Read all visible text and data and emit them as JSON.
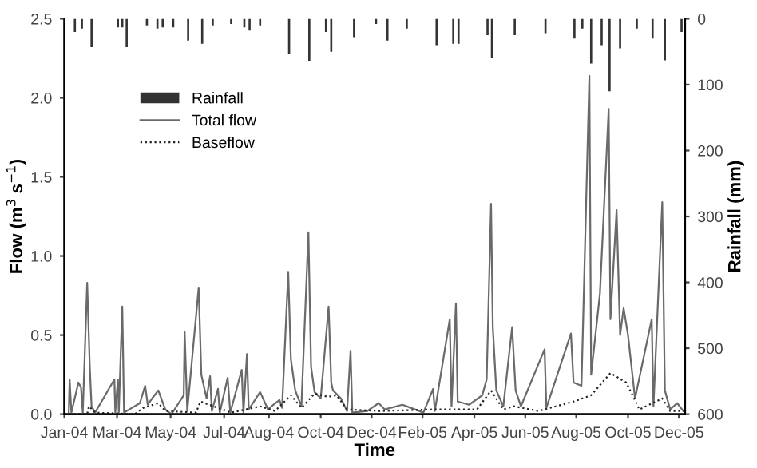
{
  "chart_data": {
    "type": "line",
    "xlabel": "Time",
    "ylabel": "Flow (m$^{3}$ s$^{−1}$)",
    "y2label": "Rainfall (mm)",
    "xlim": [
      "2004-01-01",
      "2005-12-08"
    ],
    "xticks": [
      {
        "value": "2004-01-01",
        "label": "Jan-04"
      },
      {
        "value": "2004-03-01",
        "label": "Mar-04"
      },
      {
        "value": "2004-05-01",
        "label": "May-04"
      },
      {
        "value": "2004-07-01",
        "label": "Jul-04"
      },
      {
        "value": "2004-08-21",
        "label": "Aug-04"
      },
      {
        "value": "2004-10-19",
        "label": "Oct-04"
      },
      {
        "value": "2004-12-16",
        "label": "Dec-04"
      },
      {
        "value": "2005-02-12",
        "label": "Feb-05"
      },
      {
        "value": "2005-04-12",
        "label": "Apr-05"
      },
      {
        "value": "2005-06-09",
        "label": "Jun-05"
      },
      {
        "value": "2005-08-06",
        "label": "Aug-05"
      },
      {
        "value": "2005-10-04",
        "label": "Oct-05"
      },
      {
        "value": "2005-12-01",
        "label": "Dec-05"
      }
    ],
    "ylim": [
      0,
      2.5
    ],
    "yticks": [
      {
        "value": 0,
        "label": "0.0"
      },
      {
        "value": 0.5,
        "label": "0.5"
      },
      {
        "value": 1,
        "label": "1.0"
      },
      {
        "value": 1.5,
        "label": "1.5"
      },
      {
        "value": 2,
        "label": "2.0"
      },
      {
        "value": 2.5,
        "label": "2.5"
      }
    ],
    "y2lim": [
      600,
      0
    ],
    "y2ticks": [
      0,
      100,
      200,
      300,
      400,
      500,
      600
    ],
    "grid": false,
    "legend": "top left",
    "series": [
      {
        "name": "Rainfall",
        "type": "bar",
        "axis": "y2",
        "color": "#333333",
        "x": [
          "2004-01-13",
          "2004-01-21",
          "2004-02-01",
          "2004-03-02",
          "2004-03-07",
          "2004-03-12",
          "2004-04-04",
          "2004-04-16",
          "2004-04-22",
          "2004-05-04",
          "2004-05-21",
          "2004-06-06",
          "2004-06-18",
          "2004-07-09",
          "2004-07-24",
          "2004-07-30",
          "2004-08-11",
          "2004-09-13",
          "2004-10-06",
          "2004-10-25",
          "2004-10-31",
          "2004-11-26",
          "2004-12-21",
          "2005-01-03",
          "2005-01-25",
          "2005-02-28",
          "2005-03-19",
          "2005-03-25",
          "2005-04-27",
          "2005-05-02",
          "2005-05-28",
          "2005-07-02",
          "2005-08-04",
          "2005-08-13",
          "2005-08-23",
          "2005-09-04",
          "2005-09-13",
          "2005-09-25",
          "2005-10-14",
          "2005-11-01",
          "2005-11-15",
          "2005-12-04"
        ],
        "values": [
          20,
          15,
          43,
          13,
          13,
          43,
          10,
          15,
          13,
          13,
          33,
          38,
          10,
          8,
          13,
          18,
          10,
          53,
          65,
          20,
          50,
          28,
          8,
          33,
          15,
          40,
          38,
          38,
          25,
          60,
          25,
          22,
          30,
          15,
          68,
          40,
          110,
          45,
          15,
          30,
          63,
          20
        ]
      },
      {
        "name": "Total flow",
        "line_style": "solid",
        "color": "#6a6a6a",
        "x": [
          "2004-01-01",
          "2004-01-06",
          "2004-01-07",
          "2004-01-09",
          "2004-01-17",
          "2004-01-20",
          "2004-01-22",
          "2004-01-27",
          "2004-01-30",
          "2004-02-01",
          "2004-02-05",
          "2004-02-27",
          "2004-02-28",
          "2004-03-02",
          "2004-03-03",
          "2004-03-07",
          "2004-03-09",
          "2004-03-27",
          "2004-04-02",
          "2004-04-05",
          "2004-04-10",
          "2004-04-17",
          "2004-04-25",
          "2004-05-02",
          "2004-05-16",
          "2004-05-17",
          "2004-05-20",
          "2004-06-02",
          "2004-06-05",
          "2004-06-11",
          "2004-06-15",
          "2004-06-17",
          "2004-06-24",
          "2004-06-26",
          "2004-07-05",
          "2004-07-08",
          "2004-07-21",
          "2004-07-23",
          "2004-07-27",
          "2004-07-29",
          "2004-08-11",
          "2004-08-20",
          "2004-08-24",
          "2004-09-02",
          "2004-09-05",
          "2004-09-10",
          "2004-09-12",
          "2004-09-15",
          "2004-09-20",
          "2004-09-27",
          "2004-10-05",
          "2004-10-08",
          "2004-10-12",
          "2004-10-19",
          "2004-10-28",
          "2004-10-31",
          "2004-11-02",
          "2004-11-11",
          "2004-11-18",
          "2004-11-22",
          "2004-11-24",
          "2004-12-11",
          "2004-12-24",
          "2004-12-31",
          "2005-01-20",
          "2005-02-13",
          "2005-02-24",
          "2005-02-26",
          "2005-03-15",
          "2005-03-17",
          "2005-03-22",
          "2005-03-24",
          "2005-04-06",
          "2005-04-21",
          "2005-04-26",
          "2005-05-01",
          "2005-05-03",
          "2005-05-07",
          "2005-05-15",
          "2005-05-25",
          "2005-05-29",
          "2005-06-04",
          "2005-07-01",
          "2005-07-03",
          "2005-07-31",
          "2005-08-03",
          "2005-08-12",
          "2005-08-21",
          "2005-08-23",
          "2005-09-02",
          "2005-09-12",
          "2005-09-14",
          "2005-09-21",
          "2005-09-25",
          "2005-09-29",
          "2005-10-04",
          "2005-10-12",
          "2005-10-31",
          "2005-11-02",
          "2005-11-12",
          "2005-11-15",
          "2005-11-21",
          "2005-11-29",
          "2005-12-06",
          "2005-12-08"
        ],
        "values": [
          0,
          0,
          0.22,
          0.01,
          0.2,
          0.17,
          0.01,
          0.83,
          0.29,
          0.05,
          0.01,
          0.22,
          0.01,
          0.22,
          0.01,
          0.68,
          0.01,
          0.07,
          0.18,
          0.06,
          0.1,
          0.15,
          0.03,
          0,
          0.12,
          0.52,
          0.02,
          0.8,
          0.25,
          0.1,
          0.24,
          0.02,
          0.16,
          0.01,
          0.23,
          0.01,
          0.28,
          0.01,
          0.38,
          0.03,
          0.14,
          0.03,
          0.05,
          0.09,
          0.04,
          0.65,
          0.9,
          0.35,
          0.15,
          0.05,
          1.15,
          0.3,
          0.14,
          0.1,
          0.68,
          0.2,
          0.15,
          0.1,
          0.02,
          0.4,
          0.01,
          0.02,
          0.07,
          0.03,
          0.06,
          0.01,
          0.16,
          0.02,
          0.6,
          0.05,
          0.7,
          0.08,
          0.06,
          0.12,
          0.22,
          1.33,
          0.55,
          0.15,
          0.05,
          0.55,
          0.15,
          0.05,
          0.41,
          0.04,
          0.51,
          0.2,
          0.18,
          2.14,
          0.25,
          0.76,
          1.93,
          0.6,
          1.29,
          0.5,
          0.67,
          0.5,
          0.1,
          0.6,
          0.05,
          1.34,
          0.15,
          0.03,
          0.07,
          0.02,
          0.03
        ]
      },
      {
        "name": "Baseflow",
        "line_style": "dotted",
        "color": "#222222",
        "x": [
          "2004-01-01",
          "2004-01-27",
          "2004-01-29",
          "2004-02-05",
          "2004-03-21",
          "2004-03-31",
          "2004-04-17",
          "2004-04-25",
          "2004-05-30",
          "2004-06-04",
          "2004-06-19",
          "2004-07-09",
          "2004-08-11",
          "2004-08-28",
          "2004-09-15",
          "2004-09-27",
          "2004-10-12",
          "2004-10-27",
          "2004-11-06",
          "2004-11-18",
          "2004-12-26",
          "2005-02-24",
          "2005-04-15",
          "2005-05-01",
          "2005-05-15",
          "2005-05-27",
          "2005-06-24",
          "2005-08-03",
          "2005-08-23",
          "2005-09-14",
          "2005-10-02",
          "2005-10-17",
          "2005-11-12",
          "2005-11-21",
          "2005-12-08"
        ],
        "values": [
          0,
          0,
          0.05,
          0.01,
          0,
          0.04,
          0.07,
          0.02,
          0.01,
          0.08,
          0.05,
          0.01,
          0.05,
          0.02,
          0.12,
          0.04,
          0.13,
          0.11,
          0.12,
          0.03,
          0.02,
          0.03,
          0.03,
          0.15,
          0.03,
          0.05,
          0.02,
          0.08,
          0.12,
          0.26,
          0.2,
          0.03,
          0.1,
          0.02,
          0.02
        ]
      }
    ]
  }
}
